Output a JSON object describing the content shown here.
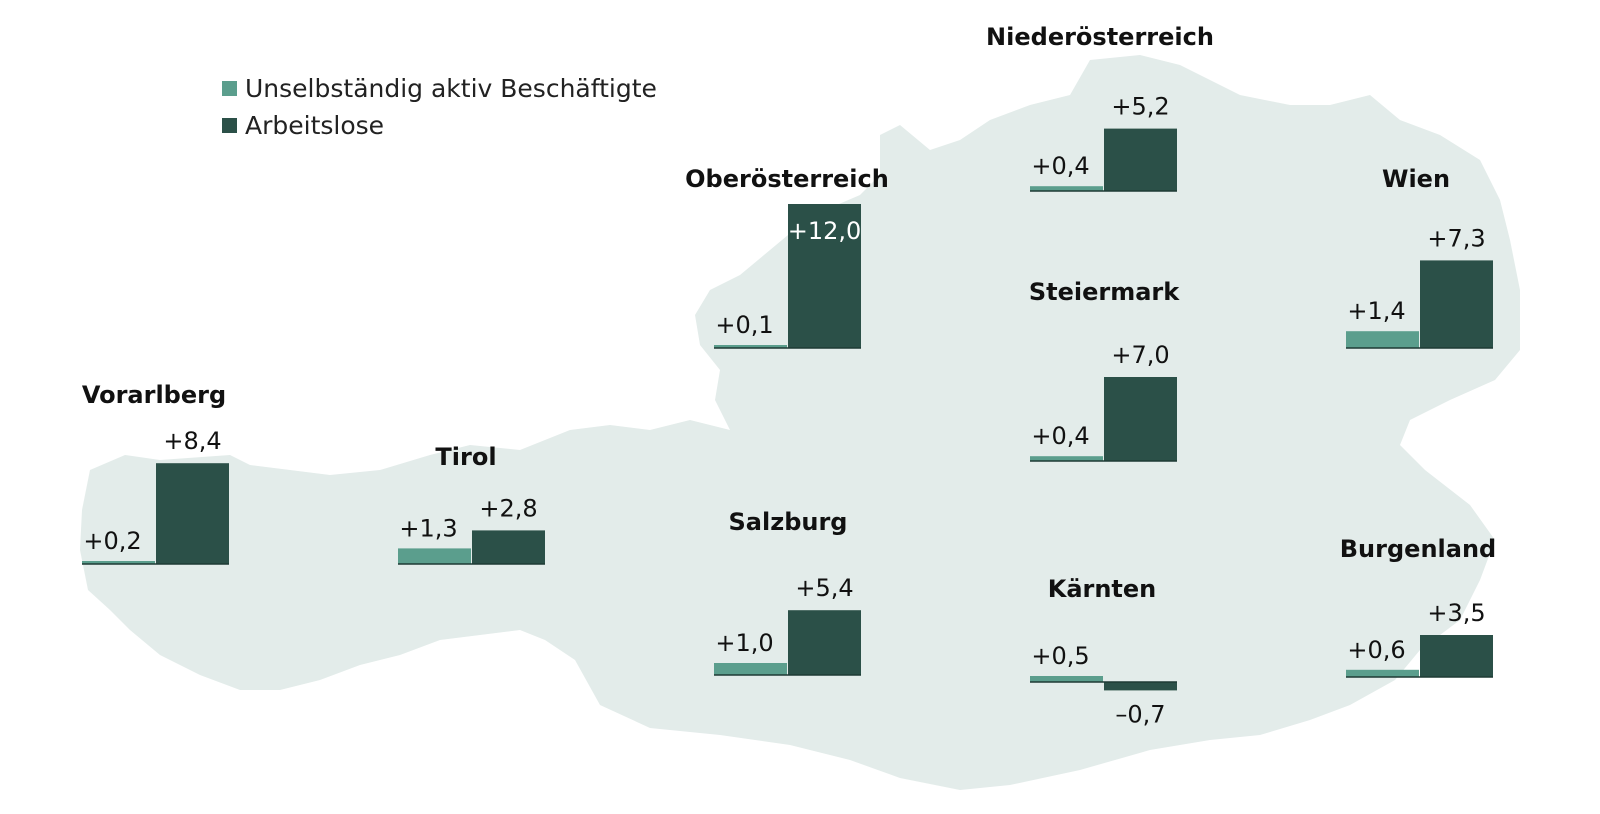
{
  "colors": {
    "map": "#e3ecea",
    "employed": "#5b9e8d",
    "unemployed": "#2b5048",
    "text": "#111111"
  },
  "legend": {
    "employed_label": "Unselbständig aktiv Beschäftigte",
    "unemployed_label": "Arbeitslose"
  },
  "chart_data": {
    "type": "bar",
    "title": "",
    "series_names": [
      "Unselbständig aktiv Beschäftigte",
      "Arbeitslose"
    ],
    "regions": [
      {
        "name": "Vorarlberg",
        "values": [
          0.2,
          8.4
        ],
        "labels": [
          "+0,2",
          "+8,4"
        ]
      },
      {
        "name": "Tirol",
        "values": [
          1.3,
          2.8
        ],
        "labels": [
          "+1,3",
          "+2,8"
        ]
      },
      {
        "name": "Salzburg",
        "values": [
          1.0,
          5.4
        ],
        "labels": [
          "+1,0",
          "+5,4"
        ]
      },
      {
        "name": "Oberösterreich",
        "values": [
          0.1,
          12.0
        ],
        "labels": [
          "+0,1",
          "+12,0"
        ]
      },
      {
        "name": "Niederösterreich",
        "values": [
          0.4,
          5.2
        ],
        "labels": [
          "+0,4",
          "+5,2"
        ]
      },
      {
        "name": "Steiermark",
        "values": [
          0.4,
          7.0
        ],
        "labels": [
          "+0,4",
          "+7,0"
        ]
      },
      {
        "name": "Kärnten",
        "values": [
          0.5,
          -0.7
        ],
        "labels": [
          "+0,5",
          "–0,7"
        ]
      },
      {
        "name": "Wien",
        "values": [
          1.4,
          7.3
        ],
        "labels": [
          "+1,4",
          "+7,3"
        ]
      },
      {
        "name": "Burgenland",
        "values": [
          0.6,
          3.5
        ],
        "labels": [
          "+0,6",
          "+3,5"
        ]
      }
    ]
  }
}
